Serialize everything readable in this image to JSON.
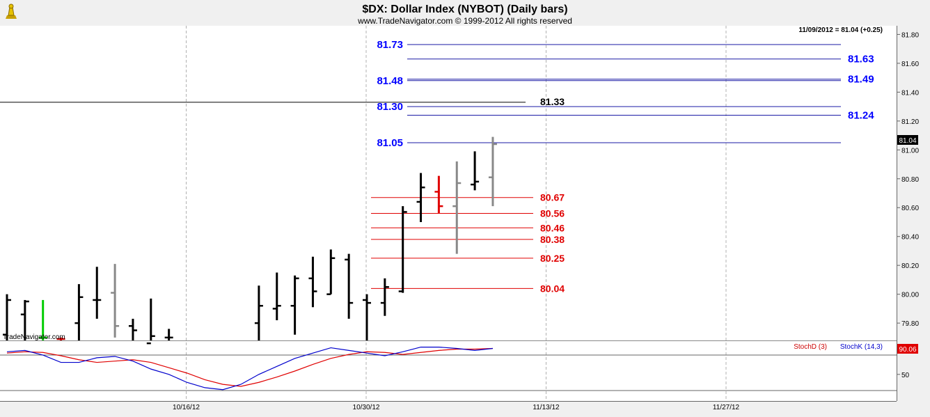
{
  "chart_data": {
    "type": "bar",
    "title": "$DX:  Dollar Index (NYBOT)  (Daily bars)",
    "subtitle": "www.TradeNavigator.com © 1999-2012 All rights reserved",
    "last_bar_label": "11/09/2012 = 81.04 (+0.25)",
    "last_price_tag": "81.04",
    "watermark": "TradeNavigator.com",
    "xlabel": "",
    "ylabel": "",
    "ylim": [
      79.68,
      81.86
    ],
    "y_ticks": [
      {
        "value": 79.8,
        "label": "79.80"
      },
      {
        "value": 80.0,
        "label": "80.00"
      },
      {
        "value": 80.2,
        "label": "80.20"
      },
      {
        "value": 80.4,
        "label": "80.40"
      },
      {
        "value": 80.6,
        "label": "80.60"
      },
      {
        "value": 80.8,
        "label": "80.80"
      },
      {
        "value": 81.0,
        "label": "81.00"
      },
      {
        "value": 81.2,
        "label": "81.20"
      },
      {
        "value": 81.4,
        "label": "81.40"
      },
      {
        "value": 81.6,
        "label": "81.60"
      },
      {
        "value": 81.8,
        "label": "81.80"
      }
    ],
    "x_ticks": [
      {
        "index": 10,
        "label": "10/16/12"
      },
      {
        "index": 20,
        "label": "10/30/12"
      },
      {
        "index": 30,
        "label": "11/13/12"
      },
      {
        "index": 40,
        "label": "11/27/12"
      }
    ],
    "bars": [
      {
        "index": 0,
        "high": 80.0,
        "low": 79.68,
        "open": 79.72,
        "close": 79.96,
        "color": "#000000"
      },
      {
        "index": 1,
        "high": 79.96,
        "low": 79.68,
        "open": 79.86,
        "close": 79.95,
        "color": "#000000"
      },
      {
        "index": 2,
        "high": 79.96,
        "low": 79.68,
        "open": 79.7,
        "close": 79.7,
        "color": "#00cc00"
      },
      {
        "index": 3,
        "high": 79.7,
        "low": 79.68,
        "open": 79.69,
        "close": 79.69,
        "color": "#cc0000"
      },
      {
        "index": 4,
        "high": 80.07,
        "low": 79.68,
        "open": 79.8,
        "close": 79.98,
        "color": "#000000"
      },
      {
        "index": 5,
        "high": 80.19,
        "low": 79.83,
        "open": 79.96,
        "close": 79.96,
        "color": "#000000"
      },
      {
        "index": 6,
        "high": 80.21,
        "low": 79.7,
        "open": 80.01,
        "close": 79.78,
        "color": "#888888"
      },
      {
        "index": 7,
        "high": 79.83,
        "low": 79.68,
        "open": 79.78,
        "close": 79.75,
        "color": "#000000"
      },
      {
        "index": 8,
        "high": 79.97,
        "low": 79.68,
        "open": 79.66,
        "close": 79.71,
        "color": "#000000"
      },
      {
        "index": 9,
        "high": 79.76,
        "low": 79.68,
        "open": 79.7,
        "close": 79.7,
        "color": "#000000"
      },
      {
        "index": 14,
        "high": 80.06,
        "low": 79.68,
        "open": 79.8,
        "close": 79.92,
        "color": "#000000"
      },
      {
        "index": 15,
        "high": 80.15,
        "low": 79.82,
        "open": 79.9,
        "close": 79.92,
        "color": "#000000"
      },
      {
        "index": 16,
        "high": 80.13,
        "low": 79.72,
        "open": 79.92,
        "close": 80.11,
        "color": "#000000"
      },
      {
        "index": 17,
        "high": 80.26,
        "low": 79.91,
        "open": 80.11,
        "close": 80.02,
        "color": "#000000"
      },
      {
        "index": 18,
        "high": 80.31,
        "low": 80.0,
        "open": 80.0,
        "close": 80.25,
        "color": "#000000"
      },
      {
        "index": 19,
        "high": 80.28,
        "low": 79.83,
        "open": 80.24,
        "close": 79.94,
        "color": "#000000"
      },
      {
        "index": 20,
        "high": 80.0,
        "low": 79.68,
        "open": 79.96,
        "close": 79.94,
        "color": "#000000"
      },
      {
        "index": 21,
        "high": 80.11,
        "low": 79.85,
        "open": 79.94,
        "close": 80.05,
        "color": "#000000"
      },
      {
        "index": 22,
        "high": 80.61,
        "low": 80.01,
        "open": 80.02,
        "close": 80.57,
        "color": "#000000"
      },
      {
        "index": 23,
        "high": 80.84,
        "low": 80.5,
        "open": 80.64,
        "close": 80.74,
        "color": "#000000"
      },
      {
        "index": 24,
        "high": 80.82,
        "low": 80.56,
        "open": 80.71,
        "close": 80.61,
        "color": "#e00000"
      },
      {
        "index": 25,
        "high": 80.92,
        "low": 80.28,
        "open": 80.61,
        "close": 80.77,
        "color": "#888888"
      },
      {
        "index": 26,
        "high": 80.99,
        "low": 80.72,
        "open": 80.76,
        "close": 80.78,
        "color": "#000000"
      },
      {
        "index": 27,
        "high": 81.09,
        "low": 80.61,
        "open": 80.81,
        "close": 81.04,
        "color": "#888888"
      }
    ],
    "levels_blue_left": [
      {
        "value": 81.73,
        "label": "81.73"
      },
      {
        "value": 81.48,
        "label": "81.48"
      },
      {
        "value": 81.3,
        "label": "81.30"
      },
      {
        "value": 81.05,
        "label": "81.05"
      }
    ],
    "levels_blue_right": [
      {
        "value": 81.63,
        "label": "81.63"
      },
      {
        "value": 81.49,
        "label": "81.49"
      },
      {
        "value": 81.24,
        "label": "81.24"
      }
    ],
    "level_black": {
      "value": 81.33,
      "label": "81.33"
    },
    "levels_red": [
      {
        "value": 80.67,
        "label": "80.67"
      },
      {
        "value": 80.56,
        "label": "80.56"
      },
      {
        "value": 80.46,
        "label": "80.46"
      },
      {
        "value": 80.38,
        "label": "80.38"
      },
      {
        "value": 80.25,
        "label": "80.25"
      },
      {
        "value": 80.04,
        "label": "80.04"
      }
    ],
    "stochastic": {
      "ylim": [
        10,
        100
      ],
      "y_ticks": [
        {
          "value": 50,
          "label": "50"
        }
      ],
      "value_tag": "90.06",
      "series": [
        {
          "name": "StochD (3)",
          "color": "#e00000",
          "points": [
            [
              0,
              82
            ],
            [
              1,
              84
            ],
            [
              2,
              83
            ],
            [
              3,
              78
            ],
            [
              4,
              72
            ],
            [
              5,
              68
            ],
            [
              6,
              70
            ],
            [
              7,
              72
            ],
            [
              8,
              68
            ],
            [
              9,
              60
            ],
            [
              10,
              52
            ],
            [
              11,
              42
            ],
            [
              12,
              35
            ],
            [
              13,
              32
            ],
            [
              14,
              38
            ],
            [
              15,
              46
            ],
            [
              16,
              55
            ],
            [
              17,
              65
            ],
            [
              18,
              74
            ],
            [
              19,
              80
            ],
            [
              20,
              84
            ],
            [
              21,
              83
            ],
            [
              22,
              80
            ],
            [
              23,
              83
            ],
            [
              24,
              86
            ],
            [
              25,
              88
            ],
            [
              26,
              88
            ],
            [
              27,
              89
            ]
          ]
        },
        {
          "name": "StochK (14,3)",
          "color": "#0000cc",
          "points": [
            [
              0,
              84
            ],
            [
              1,
              86
            ],
            [
              2,
              79
            ],
            [
              3,
              68
            ],
            [
              4,
              68
            ],
            [
              5,
              75
            ],
            [
              6,
              77
            ],
            [
              7,
              70
            ],
            [
              8,
              58
            ],
            [
              9,
              50
            ],
            [
              10,
              38
            ],
            [
              11,
              30
            ],
            [
              12,
              27
            ],
            [
              13,
              35
            ],
            [
              14,
              50
            ],
            [
              15,
              62
            ],
            [
              16,
              74
            ],
            [
              17,
              82
            ],
            [
              18,
              90
            ],
            [
              19,
              86
            ],
            [
              20,
              82
            ],
            [
              21,
              78
            ],
            [
              22,
              84
            ],
            [
              23,
              91
            ],
            [
              24,
              91
            ],
            [
              25,
              89
            ],
            [
              26,
              86
            ],
            [
              27,
              89
            ]
          ]
        }
      ]
    }
  }
}
